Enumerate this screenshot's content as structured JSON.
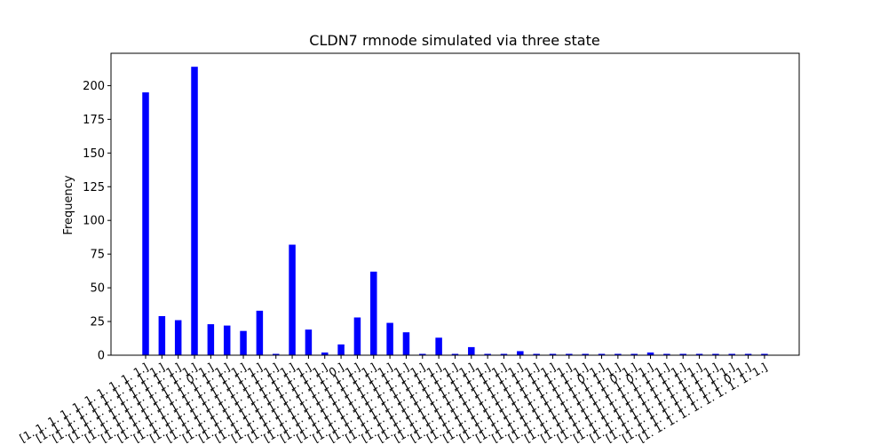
{
  "chart_data": {
    "type": "bar",
    "title": "CLDN7 rmnode simulated via three state",
    "xlabel": "",
    "ylabel": "Frequency",
    "ylim": [
      0,
      224
    ],
    "yticks": [
      0,
      25,
      50,
      75,
      100,
      125,
      150,
      175,
      200
    ],
    "bar_color": "#0000ff",
    "grid": false,
    "legend": "none",
    "categories": [
      "[1. 1. 1. 1. 1. 1. 1. 1. 1. 1.]",
      "[1. 1. 1. 1. 1. 1. 1. 1. 1. 1.]",
      "[1. 1. 1. 1. 1. 1. 1. 1. 1. 1.]",
      "[1. 1. 1. 1. 1. 1. 1. 1. 1. 1.]",
      "[1. 1. 1. 1. 1. 1. 1. 1. 0. 1.]",
      "[1. 1. 1. 1. 1. 1. 1. 1. 1. 1.]",
      "[1. 1. 1. 1. 1. 1. 1. 1. 1. 1.]",
      "[1. 1. 1. 1. 1. 1. 1. 1. 1. 1.]",
      "[1. 1. 1. 1. 1. 1. 1. 1. 1. 1.]",
      "[1. 1. 1. 1. 1. 1. 1. 1. 1. 1.]",
      "[1. 1. 1. 1. 1. 1. 1. 1. 1. 1.]",
      "[1. 1. 1. 1. 1. 1. 1. 1. 1. 1.]",
      "[1. 1. 1. 1. 1. 1. 1. 1. 1. 0.]",
      "[1. 1. 1. 1. 1. 1. 1. 1. 1. 1.]",
      "[1. 1. 1. 1. 1. 1. 1. 1. 1. 1.]",
      "[1. 1. 1. 1. 1. 1. 1. 1. 1. 1.]",
      "[1. 1. 1. 1. 1. 1. 1. 1. 1. 1.]",
      "[1. 1. 1. 1. 1. 1. 1. 1. 1. 1.]",
      "[1. 1. 1. 1. 1. 1. 1. 1. 1. 1.]",
      "[1. 1. 1. 1. 1. 1. 1. 1. 1. 1.]",
      "[1. 1. 1. 1. 1. 1. 1. 1. 1. 1.]",
      "[1. 1. 1. 1. 1. 1. 1. 1. 1. 1.]",
      "[1. 1. 1. 1. 1. 1. 1. 1. 1. 1.]",
      "[1. 1. 1. 1. 1. 1. 1. 1. 1. 1.]",
      "[1. 1. 1. 1. 1. 1. 1. 1. 1. 1.]",
      "[1. 1. 1. 1. 1. 1. 1. 1. 1. 1.]",
      "[1. 1. 1. 1. 1. 1. 1. 1. 1. 1.]",
      "[1. 1. 1. 1. 1. 1. 1. 1. 1. 1.]",
      "[1. 1. 1. 1. 1. 1. 1. 1. 0. 1.]",
      "[1. 1. 1. 1. 1. 1. 1. 1. 1. 1.]",
      "[1. 1. 1. 1. 1. 1. 1. 1. 0. 1.]",
      "[1. 1. 1. 1. 1. 1. 1. 1. 0. 1.]",
      "[1. 1. 1. 1. 1. 1. 1. 1. 1. 1.]",
      "[1. 1. 1. 1. 1. 1. 1. 1. 1. 1.]",
      "[1. 1. 1. 1. 1. 1. 1. 1. 1. 1.]",
      "[1. 1. 1. 1. 1. 1. 1. 1. 1. 1.]",
      "[1. 1. 1. 1. 1. 1. 1. 1. 1. 1.]",
      "[1. 1. 1. 1. 1. 1. 1. 1. 0. 1.]",
      "[1. 1. 1. 1. 1. 1. 1. 1. 1. 1.]"
    ],
    "values": [
      195,
      29,
      26,
      214,
      23,
      22,
      18,
      33,
      1,
      82,
      19,
      2,
      8,
      28,
      62,
      24,
      17,
      1,
      13,
      1,
      6,
      1,
      1,
      3,
      1,
      1,
      1,
      1,
      1,
      1,
      1,
      2,
      1,
      1,
      1,
      1,
      1,
      1,
      1
    ]
  }
}
